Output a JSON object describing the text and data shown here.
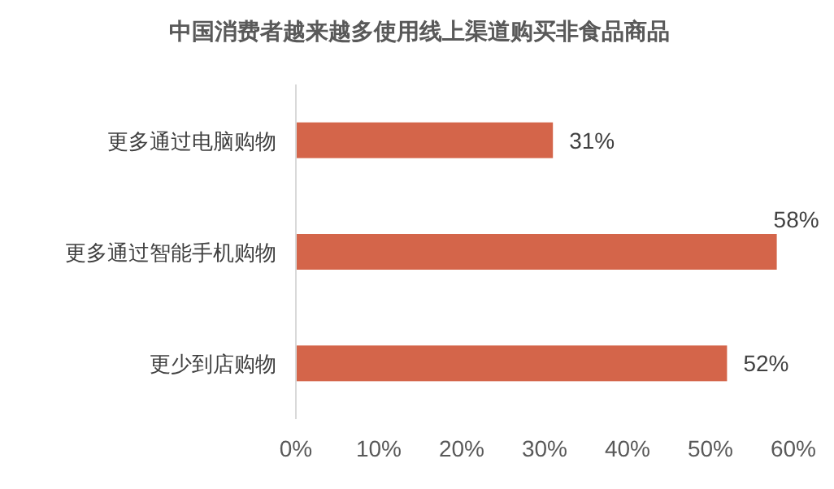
{
  "chart_data": {
    "type": "bar",
    "orientation": "horizontal",
    "title": "中国消费者越来越多使用线上渠道购买非食品商品",
    "categories": [
      "更多通过电脑购物",
      "更多通过智能手机购物",
      "更少到店购物"
    ],
    "values": [
      31,
      58,
      52
    ],
    "color": "#d4654a",
    "value_labels": [
      "31%",
      "58%",
      "52%"
    ],
    "xlim": [
      0,
      60
    ],
    "xticks": [
      {
        "value": 0,
        "label": "0%"
      },
      {
        "value": 10,
        "label": "10%"
      },
      {
        "value": 20,
        "label": "20%"
      },
      {
        "value": 30,
        "label": "30%"
      },
      {
        "value": 40,
        "label": "40%"
      },
      {
        "value": 50,
        "label": "50%"
      },
      {
        "value": 60,
        "label": "60%"
      }
    ],
    "grid": false
  }
}
